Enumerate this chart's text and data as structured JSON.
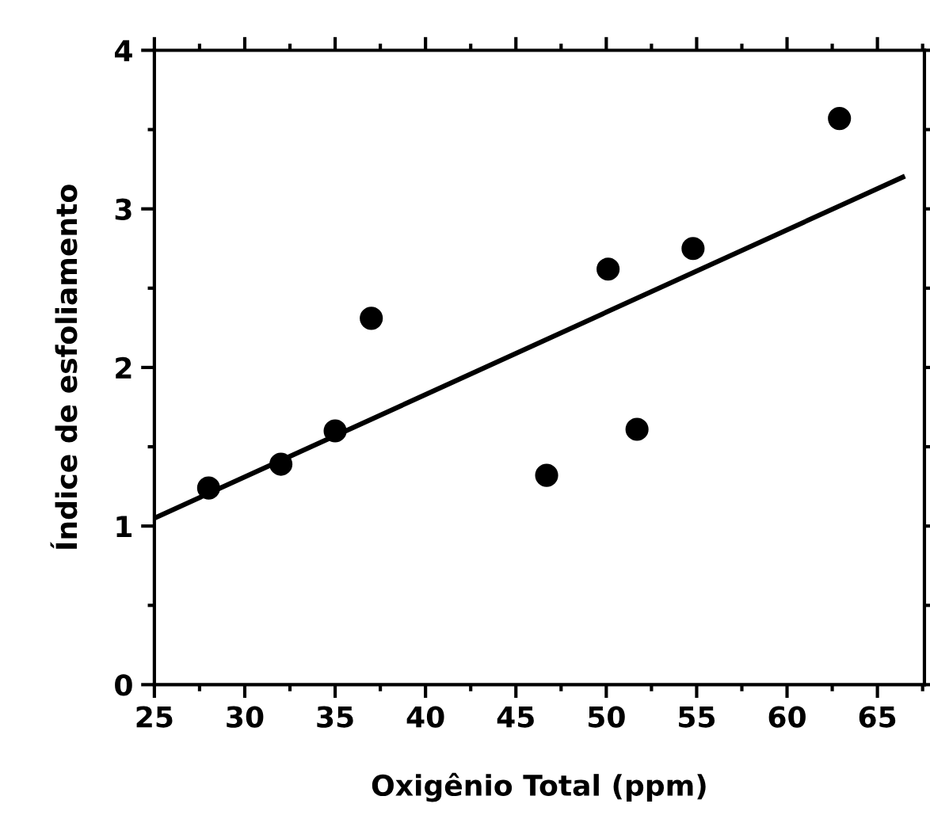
{
  "chart_data": {
    "type": "scatter",
    "xlabel": "Oxigênio Total (ppm)",
    "ylabel": "Índice de esfoliamento",
    "x": [
      28.0,
      32.0,
      35.0,
      37.0,
      46.7,
      50.1,
      51.7,
      54.8,
      62.9
    ],
    "series": [
      {
        "color": "#000000",
        "marker": "circle",
        "values": [
          1.24,
          1.39,
          1.6,
          2.31,
          1.32,
          2.62,
          1.61,
          2.75,
          3.57
        ]
      },
      {
        "type": "line",
        "color": "#000000",
        "x": [
          25,
          66.4
        ],
        "values": [
          1.05,
          3.2
        ]
      }
    ],
    "xlim": [
      25,
      67.6
    ],
    "ylim": [
      0,
      4
    ],
    "xticks": [
      25,
      30,
      35,
      40,
      45,
      50,
      55,
      60,
      65
    ],
    "yticks": [
      0,
      1,
      2,
      3,
      4
    ],
    "grid": false,
    "legend": false
  }
}
